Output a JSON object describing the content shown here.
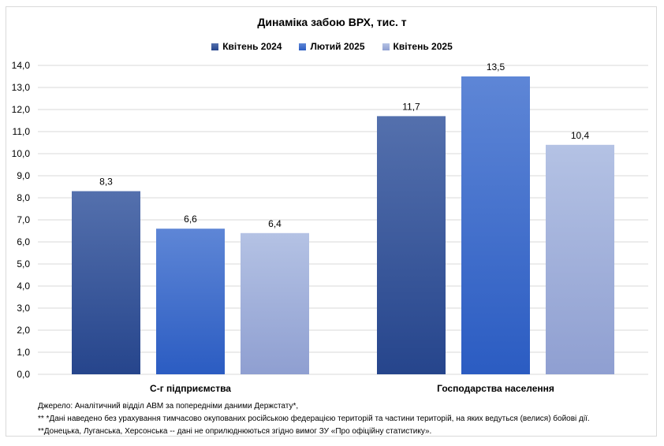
{
  "title": "Динаміка забою ВРХ, тис. т",
  "chart_data": {
    "type": "bar",
    "title": "Динаміка забою ВРХ, тис. т",
    "categories": [
      "С-г підприємства",
      "Господарства населення"
    ],
    "series": [
      {
        "name": "Квітень 2024",
        "values": [
          8.3,
          11.7
        ],
        "color_top": "#5470ad",
        "color_bottom": "#26458c"
      },
      {
        "name": "Лютий 2025",
        "values": [
          6.6,
          13.5
        ],
        "color_top": "#5e86d6",
        "color_bottom": "#2b5cc2"
      },
      {
        "name": "Квітень 2025",
        "values": [
          6.4,
          10.4
        ],
        "color_top": "#b4c2e4",
        "color_bottom": "#8f9fd1"
      }
    ],
    "value_labels": [
      [
        "8,3",
        "11,7"
      ],
      [
        "6,6",
        "13,5"
      ],
      [
        "6,4",
        "10,4"
      ]
    ],
    "ylim": [
      0,
      14
    ],
    "yticks": [
      "0,0",
      "1,0",
      "2,0",
      "3,0",
      "4,0",
      "5,0",
      "6,0",
      "7,0",
      "8,0",
      "9,0",
      "10,0",
      "11,0",
      "12,0",
      "13,0",
      "14,0"
    ],
    "grid": true,
    "legend_position": "top-center",
    "xlabel": "",
    "ylabel": ""
  },
  "notes": [
    "Джерело:  Аналітичний відділ АВМ за попередніми даними Держстату*,",
    "** *Дані наведено  без урахування тимчасово окупованих російською федерацією територій та частини територій, на яких ведуться  (велися) бойові дії.",
    "**Донецька,  Луганська, Херсонська -- дані не оприлюднюються  згідно вимог ЗУ «Про офіційну статистику»."
  ]
}
